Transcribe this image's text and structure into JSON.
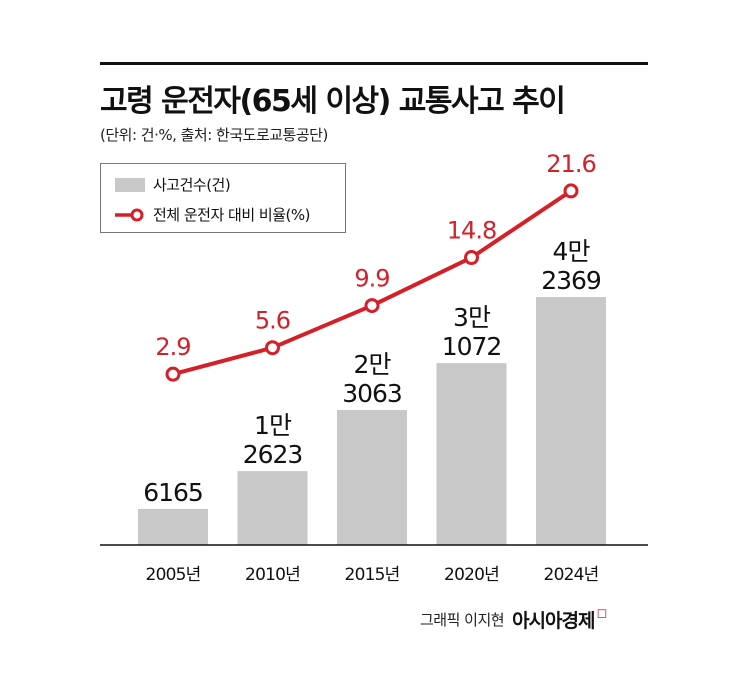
{
  "title": "고령 운전자(65세 이상) 교통사고 추이",
  "subtitle": "(단위: 건·%, 출처: 한국도로교통공단)",
  "legend": {
    "bars": "사고건수(건)",
    "line": "전체 운전자 대비 비율(%)"
  },
  "colors": {
    "bar": "#c8c8c8",
    "line": "#d42028",
    "axis": "#111111"
  },
  "chart_data": {
    "type": "bar",
    "categories": [
      "2005년",
      "2010년",
      "2015년",
      "2020년",
      "2024년"
    ],
    "series": [
      {
        "name": "사고건수(건)",
        "type": "bar",
        "values": [
          6165,
          12623,
          23063,
          31072,
          42369
        ],
        "labels": [
          [
            "6165"
          ],
          [
            "1만",
            "2623"
          ],
          [
            "2만",
            "3063"
          ],
          [
            "3만",
            "1072"
          ],
          [
            "4만",
            "2369"
          ]
        ]
      },
      {
        "name": "전체 운전자 대비 비율(%)",
        "type": "line",
        "values": [
          2.9,
          5.6,
          9.9,
          14.8,
          21.6
        ],
        "labels": [
          "2.9",
          "5.6",
          "9.9",
          "14.8",
          "21.6"
        ]
      }
    ],
    "legend": "top-left",
    "grid": false
  },
  "credit": {
    "text": "그래픽 이지현",
    "brand": "아시아경제",
    "brand_mark": "◻"
  }
}
